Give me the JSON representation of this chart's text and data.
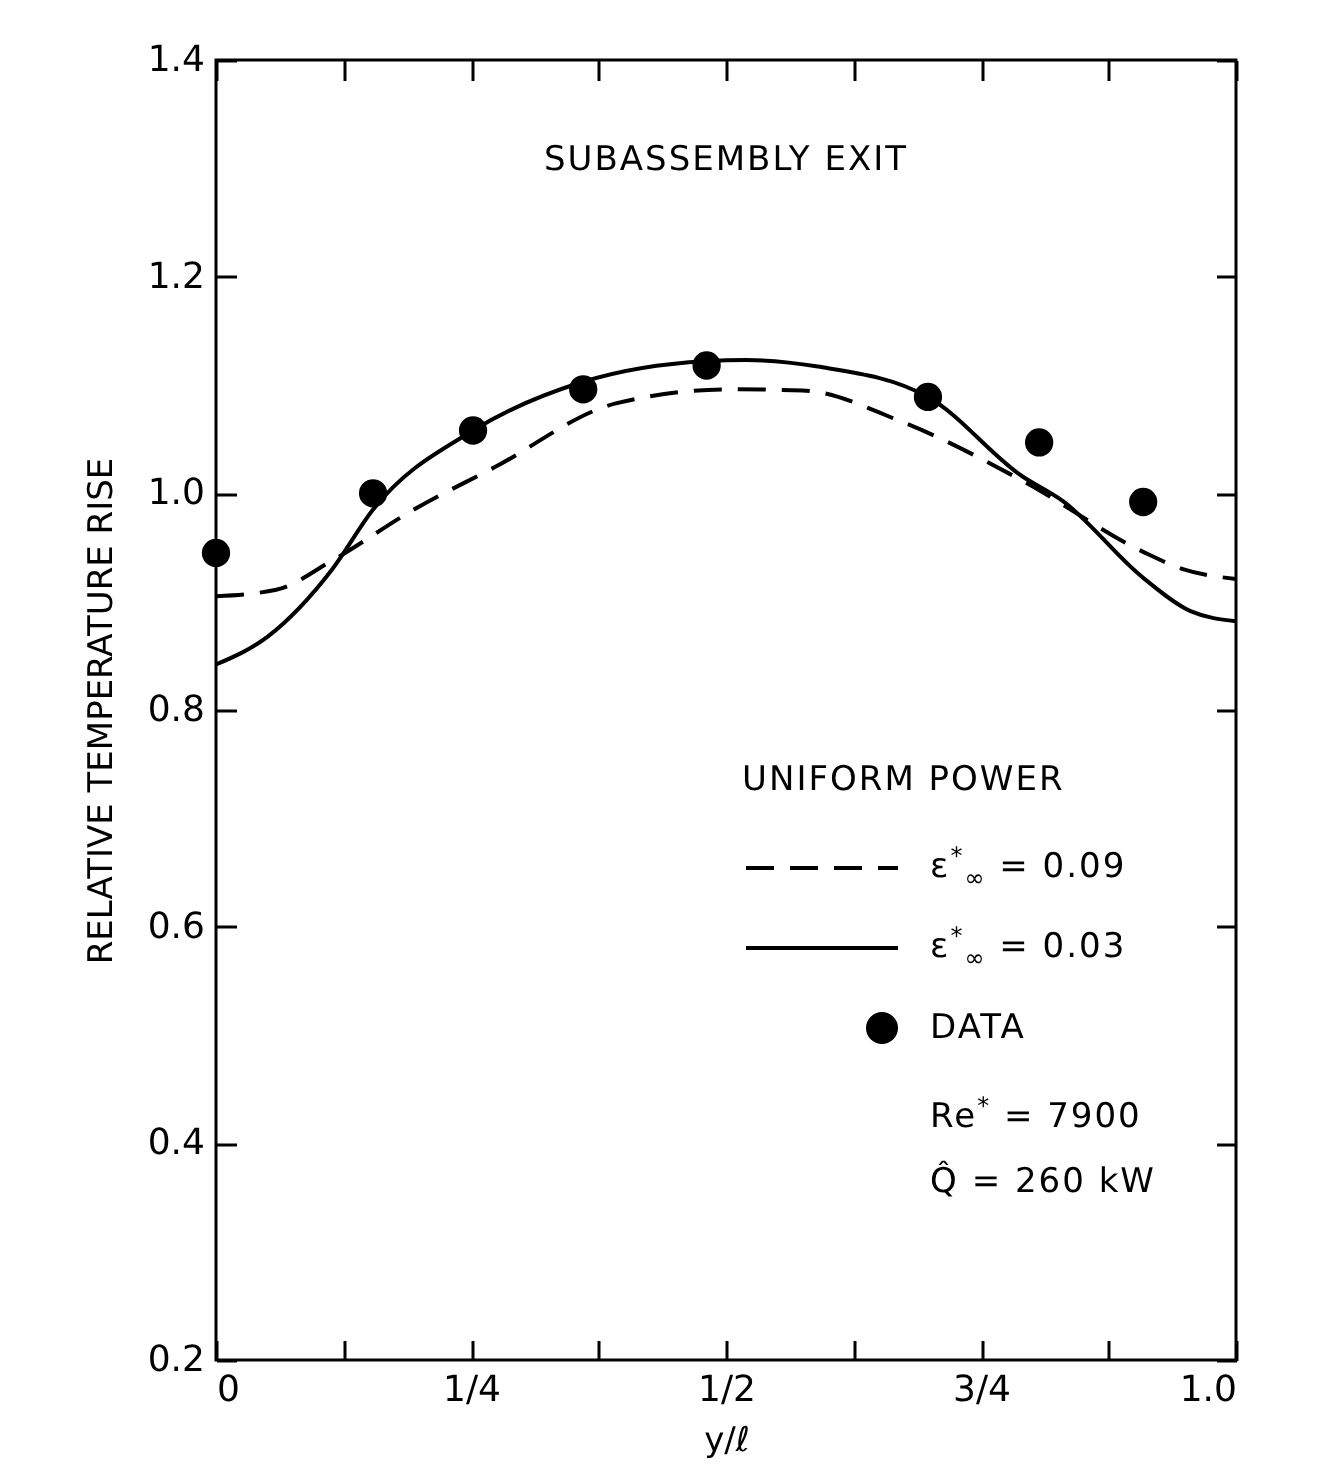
{
  "chart_data": {
    "type": "line",
    "xlabel": "y/ℓ",
    "ylabel": "RELATIVE TEMPERATURE RISE",
    "legend_title": "UNIFORM POWER",
    "annotations": [
      "SUBASSEMBLY EXIT",
      "Re$^{*}$ = 7900",
      "Q̂ = 260 kW"
    ],
    "xlim": [
      0,
      1.0
    ],
    "ylim": [
      0.2,
      1.4
    ],
    "xticks": [
      {
        "value": 0,
        "label": "0"
      },
      {
        "value": 0.125,
        "label": null
      },
      {
        "value": 0.25,
        "label": "1/4"
      },
      {
        "value": 0.375,
        "label": null
      },
      {
        "value": 0.5,
        "label": "1/2"
      },
      {
        "value": 0.625,
        "label": null
      },
      {
        "value": 0.75,
        "label": "3/4"
      },
      {
        "value": 0.875,
        "label": null
      },
      {
        "value": 1.0,
        "label": "1.0"
      }
    ],
    "yticks": [
      {
        "value": 0.2,
        "label": "0.2"
      },
      {
        "value": 0.4,
        "label": "0.4"
      },
      {
        "value": 0.6,
        "label": "0.6"
      },
      {
        "value": 0.8,
        "label": "0.8"
      },
      {
        "value": 1.0,
        "label": "1.0"
      },
      {
        "value": 1.2,
        "label": "1.2"
      },
      {
        "value": 1.4,
        "label": "1.4"
      }
    ],
    "grid": false,
    "legend": "bottom right",
    "series": [
      {
        "name": "ε$^{*}$$_{∞}$ = 0.09",
        "type": "line",
        "line_style": "dashed",
        "color": "#000000",
        "x": [
          0,
          0.059,
          0.114,
          0.194,
          0.273,
          0.392,
          0.504,
          0.575,
          0.67,
          0.79,
          0.909,
          0.948,
          1.0
        ],
        "values": [
          0.905,
          0.911,
          0.938,
          0.985,
          1.024,
          1.083,
          1.096,
          1.095,
          1.067,
          1.012,
          0.946,
          0.93,
          0.921
        ]
      },
      {
        "name": "ε$^{*}$$_{∞}$ = 0.03",
        "type": "line",
        "line_style": "solid",
        "color": "#000000",
        "x": [
          0,
          0.051,
          0.114,
          0.154,
          0.252,
          0.36,
          0.48,
          0.52,
          0.59,
          0.698,
          0.79,
          0.83,
          0.909,
          0.956,
          1.0
        ],
        "values": [
          0.842,
          0.868,
          0.93,
          0.985,
          1.058,
          1.103,
          1.122,
          1.123,
          1.117,
          1.089,
          1.016,
          0.993,
          0.922,
          0.891,
          0.882
        ]
      },
      {
        "name": "DATA",
        "type": "scatter",
        "marker": "circle",
        "color": "#000000",
        "x": [
          0,
          0.154,
          0.252,
          0.36,
          0.481,
          0.698,
          0.807,
          0.909
        ],
        "values": [
          0.945,
          1.0,
          1.058,
          1.096,
          1.118,
          1.089,
          1.047,
          0.992
        ]
      }
    ]
  }
}
